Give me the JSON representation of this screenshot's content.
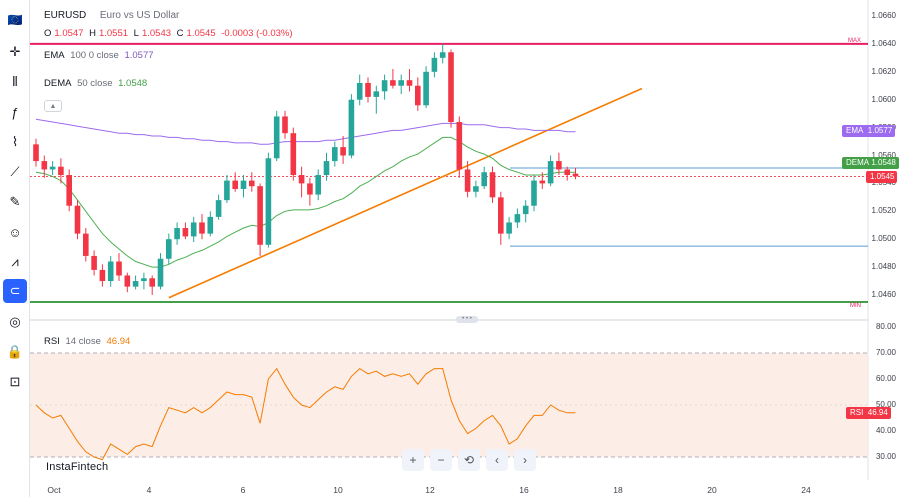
{
  "symbol": {
    "ticker": "EURUSD",
    "description": "Euro vs US Dollar",
    "o_label": "O",
    "open": "1.0547",
    "h_label": "H",
    "high": "1.0551",
    "l_label": "L",
    "low": "1.0543",
    "c_label": "C",
    "close": "1.0545",
    "change": "-0.0003 (-0.03%)"
  },
  "indicators": {
    "ema": {
      "name": "EMA",
      "params": "100 0 close",
      "value": "1.0577",
      "color": "#9c6bf0"
    },
    "dema": {
      "name": "DEMA",
      "params": "50 close",
      "value": "1.0548",
      "color": "#4caf50"
    },
    "rsi": {
      "name": "RSI",
      "params": "14 close",
      "value": "46.94",
      "color": "#f57c00"
    }
  },
  "price_axis": [
    "1.0660",
    "1.0640",
    "1.0620",
    "1.0600",
    "1.0580",
    "1.0560",
    "1.0540",
    "1.0520",
    "1.0500",
    "1.0480",
    "1.0460"
  ],
  "rsi_axis": [
    "80.00",
    "70.00",
    "60.00",
    "50.00",
    "40.00",
    "30.00"
  ],
  "date_axis": [
    "Oct",
    "4",
    "6",
    "10",
    "12",
    "16",
    "18",
    "20",
    "24"
  ],
  "tags": {
    "ema": {
      "label": "EMA",
      "value": "1.0577",
      "color": "#9c6bf0"
    },
    "dema": {
      "label": "DEMA",
      "value": "1.0548",
      "color": "#43a047"
    },
    "price": {
      "value": "1.0545",
      "color": "#f23645"
    },
    "rsi": {
      "label": "RSI",
      "value": "46.94",
      "color": "#f23645"
    }
  },
  "markers": {
    "max": "MAX",
    "min": "MIN"
  },
  "brand": "InstaFintech",
  "toolbar_icons": [
    "flag-icon",
    "crosshair-icon",
    "candles-icon",
    "fx-icon",
    "pattern-icon",
    "ruler-icon",
    "brush-icon",
    "emoji-icon",
    "measure-icon",
    "magnet-icon",
    "eye-icon",
    "lock-icon",
    "camera-icon"
  ],
  "nav_buttons": [
    "+",
    "−",
    "⟲",
    "‹",
    "›"
  ],
  "chart_data": {
    "type": "candlestick",
    "candles": [
      [
        1.0568,
        1.0572,
        1.0552,
        1.0556
      ],
      [
        1.0556,
        1.056,
        1.0544,
        1.055
      ],
      [
        1.055,
        1.0556,
        1.0546,
        1.0552
      ],
      [
        1.0552,
        1.0558,
        1.054,
        1.0546
      ],
      [
        1.0546,
        1.055,
        1.052,
        1.0524
      ],
      [
        1.0524,
        1.0528,
        1.05,
        1.0504
      ],
      [
        1.0504,
        1.0508,
        1.0484,
        1.0488
      ],
      [
        1.0488,
        1.0492,
        1.0474,
        1.0478
      ],
      [
        1.0478,
        1.0482,
        1.0466,
        1.047
      ],
      [
        1.047,
        1.0488,
        1.0466,
        1.0484
      ],
      [
        1.0484,
        1.049,
        1.047,
        1.0474
      ],
      [
        1.0474,
        1.0476,
        1.0462,
        1.0466
      ],
      [
        1.0466,
        1.0474,
        1.0464,
        1.047
      ],
      [
        1.047,
        1.0476,
        1.0464,
        1.0472
      ],
      [
        1.0472,
        1.0474,
        1.046,
        1.0466
      ],
      [
        1.0466,
        1.049,
        1.0464,
        1.0486
      ],
      [
        1.0486,
        1.0504,
        1.0482,
        1.05
      ],
      [
        1.05,
        1.0512,
        1.0496,
        1.0508
      ],
      [
        1.0508,
        1.0512,
        1.05,
        1.0502
      ],
      [
        1.0502,
        1.0516,
        1.0498,
        1.0512
      ],
      [
        1.0512,
        1.0518,
        1.05,
        1.0504
      ],
      [
        1.0504,
        1.052,
        1.0502,
        1.0516
      ],
      [
        1.0516,
        1.0532,
        1.0514,
        1.0528
      ],
      [
        1.0528,
        1.0546,
        1.0526,
        1.0542
      ],
      [
        1.0542,
        1.0548,
        1.0534,
        1.0536
      ],
      [
        1.0536,
        1.0546,
        1.053,
        1.0542
      ],
      [
        1.0542,
        1.0548,
        1.0534,
        1.0538
      ],
      [
        1.0538,
        1.054,
        1.0488,
        1.0496
      ],
      [
        1.0496,
        1.0562,
        1.0494,
        1.0558
      ],
      [
        1.0558,
        1.0592,
        1.0556,
        1.0588
      ],
      [
        1.0588,
        1.0592,
        1.0572,
        1.0576
      ],
      [
        1.0576,
        1.058,
        1.0542,
        1.0546
      ],
      [
        1.0546,
        1.0552,
        1.053,
        1.054
      ],
      [
        1.054,
        1.0544,
        1.0524,
        1.0532
      ],
      [
        1.0532,
        1.055,
        1.0528,
        1.0546
      ],
      [
        1.0546,
        1.0562,
        1.0542,
        1.0556
      ],
      [
        1.0556,
        1.057,
        1.0552,
        1.0566
      ],
      [
        1.0566,
        1.0574,
        1.0554,
        1.056
      ],
      [
        1.056,
        1.0604,
        1.0558,
        1.06
      ],
      [
        1.06,
        1.0618,
        1.0596,
        1.0612
      ],
      [
        1.0612,
        1.0616,
        1.0598,
        1.0602
      ],
      [
        1.0602,
        1.061,
        1.059,
        1.0606
      ],
      [
        1.0606,
        1.0618,
        1.06,
        1.0614
      ],
      [
        1.0614,
        1.0622,
        1.0608,
        1.061
      ],
      [
        1.061,
        1.0618,
        1.0604,
        1.0614
      ],
      [
        1.0614,
        1.0622,
        1.0606,
        1.061
      ],
      [
        1.061,
        1.0616,
        1.0592,
        1.0596
      ],
      [
        1.0596,
        1.0624,
        1.0594,
        1.062
      ],
      [
        1.062,
        1.0634,
        1.0616,
        1.063
      ],
      [
        1.063,
        1.064,
        1.0626,
        1.0634
      ],
      [
        1.0634,
        1.0636,
        1.058,
        1.0584
      ],
      [
        1.0584,
        1.0588,
        1.0544,
        1.055
      ],
      [
        1.055,
        1.0556,
        1.053,
        1.0534
      ],
      [
        1.0534,
        1.0542,
        1.053,
        1.0538
      ],
      [
        1.0538,
        1.0552,
        1.0536,
        1.0548
      ],
      [
        1.0548,
        1.0552,
        1.0526,
        1.053
      ],
      [
        1.053,
        1.0534,
        1.0496,
        1.0504
      ],
      [
        1.0504,
        1.0516,
        1.05,
        1.0512
      ],
      [
        1.0512,
        1.0522,
        1.0508,
        1.0518
      ],
      [
        1.0518,
        1.0528,
        1.0512,
        1.0524
      ],
      [
        1.0524,
        1.0546,
        1.052,
        1.0542
      ],
      [
        1.0542,
        1.0548,
        1.0536,
        1.054
      ],
      [
        1.054,
        1.056,
        1.0538,
        1.0556
      ],
      [
        1.0556,
        1.0562,
        1.0546,
        1.055
      ],
      [
        1.055,
        1.0552,
        1.0542,
        1.0546
      ],
      [
        1.0547,
        1.0551,
        1.0543,
        1.0545
      ]
    ],
    "ema": [
      1.0586,
      1.0585,
      1.0584,
      1.0583,
      1.0582,
      1.0581,
      1.058,
      1.0579,
      1.0578,
      1.0577,
      1.0576,
      1.0576,
      1.0575,
      1.0575,
      1.0574,
      1.0574,
      1.0573,
      1.0573,
      1.0572,
      1.0572,
      1.0571,
      1.0571,
      1.057,
      1.057,
      1.0569,
      1.0569,
      1.0569,
      1.0568,
      1.0568,
      1.0569,
      1.057,
      1.057,
      1.057,
      1.057,
      1.057,
      1.0571,
      1.0571,
      1.0572,
      1.0573,
      1.0574,
      1.0575,
      1.0576,
      1.0577,
      1.0578,
      1.0578,
      1.0579,
      1.058,
      1.0581,
      1.0582,
      1.0583,
      1.0583,
      1.0583,
      1.0582,
      1.0582,
      1.0582,
      1.0581,
      1.058,
      1.058,
      1.0579,
      1.0579,
      1.0578,
      1.0578,
      1.0578,
      1.0578,
      1.0577,
      1.0577
    ],
    "dema": [
      1.0548,
      1.0547,
      1.0545,
      1.0542,
      1.0536,
      1.0528,
      1.052,
      1.0512,
      1.0504,
      1.0498,
      1.0493,
      1.0488,
      1.0484,
      1.0482,
      1.048,
      1.048,
      1.0482,
      1.0485,
      1.0487,
      1.049,
      1.0492,
      1.0495,
      1.0498,
      1.0502,
      1.0505,
      1.0508,
      1.051,
      1.0509,
      1.0512,
      1.0517,
      1.052,
      1.0521,
      1.0521,
      1.0521,
      1.0522,
      1.0524,
      1.0527,
      1.0529,
      1.0533,
      1.0538,
      1.0541,
      1.0545,
      1.0549,
      1.0552,
      1.0556,
      1.0559,
      1.0561,
      1.0565,
      1.0569,
      1.0573,
      1.0573,
      1.057,
      1.0566,
      1.0563,
      1.0561,
      1.0558,
      1.0553,
      1.055,
      1.0548,
      1.0546,
      1.0546,
      1.0546,
      1.0547,
      1.0548,
      1.0548,
      1.0548
    ],
    "rsi": [
      50,
      47,
      45,
      46,
      41,
      36,
      32,
      30,
      29,
      35,
      33,
      31,
      34,
      35,
      34,
      42,
      49,
      48,
      47,
      49,
      47,
      49,
      52,
      55,
      54,
      54,
      53,
      43,
      60,
      64,
      58,
      53,
      50,
      49,
      52,
      55,
      57,
      56,
      61,
      64,
      62,
      63,
      61,
      62,
      61,
      62,
      58,
      62,
      64,
      64,
      52,
      44,
      39,
      41,
      44,
      46,
      42,
      35,
      37,
      42,
      46,
      46,
      50,
      48,
      47,
      47
    ],
    "trendline": [
      [
        1.0458,
        16
      ],
      [
        1.0608,
        73
      ]
    ],
    "resistance": 1.064,
    "support": 1.0455,
    "upper_box": 1.0551,
    "lower_box": 1.0495,
    "rsi_levels": [
      70,
      30
    ]
  }
}
